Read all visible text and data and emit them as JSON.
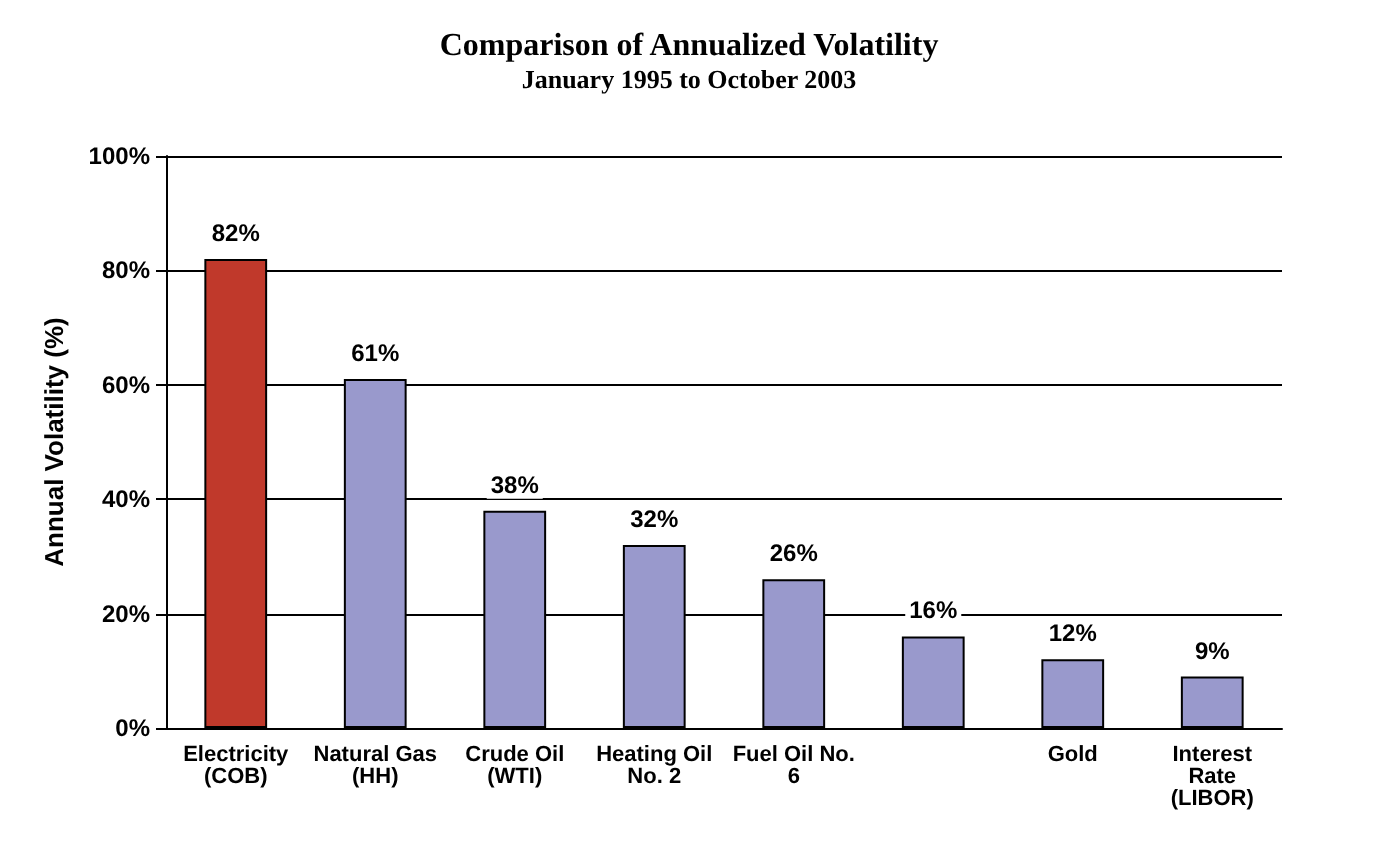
{
  "chart_data": {
    "type": "bar",
    "title": "Comparison of Annualized Volatility",
    "subtitle": "January 1995 to October 2003",
    "ylabel": "Annual Volatility (%)",
    "categories": [
      "Electricity\n(COB)",
      "Natural Gas\n(HH)",
      "Crude Oil\n(WTI)",
      "Heating Oil\nNo. 2",
      "Fuel Oil No.\n6",
      null,
      "Gold",
      "Interest\nRate\n(LIBOR)"
    ],
    "values": [
      82,
      61,
      38,
      32,
      26,
      16,
      12,
      9
    ],
    "value_labels": [
      "82%",
      "61%",
      "38%",
      "32%",
      "26%",
      "16%",
      "12%",
      "9%"
    ],
    "colors": [
      "#c0392b",
      "#9999cc",
      "#9999cc",
      "#9999cc",
      "#9999cc",
      "#9999cc",
      "#9999cc",
      "#9999cc"
    ],
    "ylim": [
      0,
      100
    ],
    "yticks": [
      {
        "value": 0,
        "label": "0%"
      },
      {
        "value": 20,
        "label": "20%"
      },
      {
        "value": 40,
        "label": "40%"
      },
      {
        "value": 60,
        "label": "60%"
      },
      {
        "value": 80,
        "label": "80%"
      },
      {
        "value": 100,
        "label": "100%"
      }
    ],
    "grid": "y"
  }
}
